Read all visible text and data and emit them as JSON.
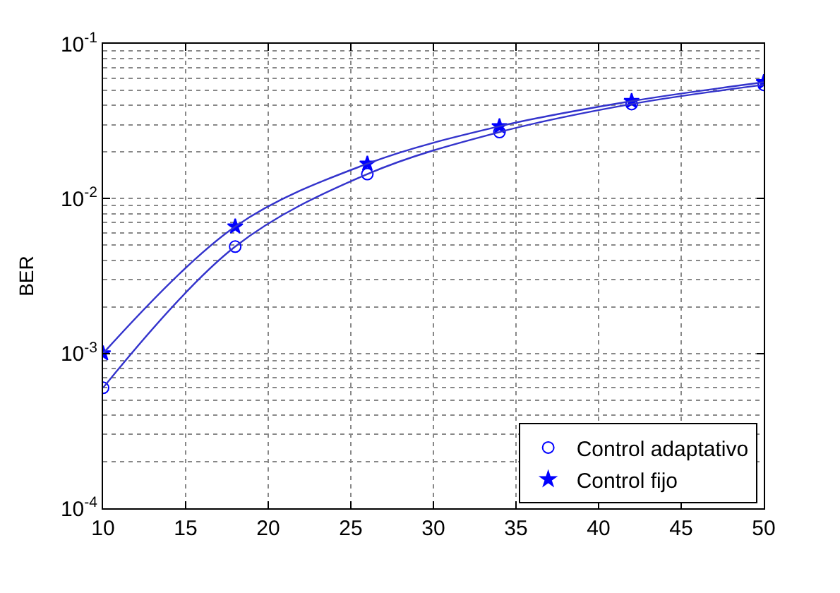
{
  "chart_data": {
    "type": "scatter",
    "ylabel": "BER",
    "log": "y",
    "x": [
      10,
      18,
      26,
      34,
      42,
      50
    ],
    "series": [
      {
        "name": "Control adaptativo",
        "color": "#0000ff",
        "marker": "circle",
        "values": [
          0.0006,
          0.0049,
          0.0144,
          0.0269,
          0.0408,
          0.0543
        ]
      },
      {
        "name": "Control fijo",
        "color": "#0000ff",
        "marker": "star",
        "values": [
          0.001,
          0.0066,
          0.0168,
          0.0293,
          0.0426,
          0.0564
        ]
      },
      {
        "type": "line",
        "color": "#3333cc",
        "marker": "none",
        "values": [
          0.0006,
          0.0049,
          0.0144,
          0.0269,
          0.0408,
          0.0543
        ]
      },
      {
        "type": "line",
        "color": "#3333cc",
        "marker": "none",
        "values": [
          0.001,
          0.0066,
          0.0168,
          0.0293,
          0.0426,
          0.0564
        ]
      }
    ],
    "xlim": [
      10,
      50
    ],
    "xticks": [
      10,
      15,
      20,
      25,
      30,
      35,
      40,
      45,
      50
    ],
    "ylim": [
      0.0001,
      0.1
    ],
    "yticks": [
      {
        "value": 0.0001,
        "label": "10$^{-4}$"
      },
      {
        "value": 0.001,
        "label": "10$^{-3}$"
      },
      {
        "value": 0.01,
        "label": "10$^{-2}$"
      },
      {
        "value": 0.1,
        "label": "10$^{-1}$"
      }
    ],
    "grid": true,
    "legend": "bottom right"
  }
}
